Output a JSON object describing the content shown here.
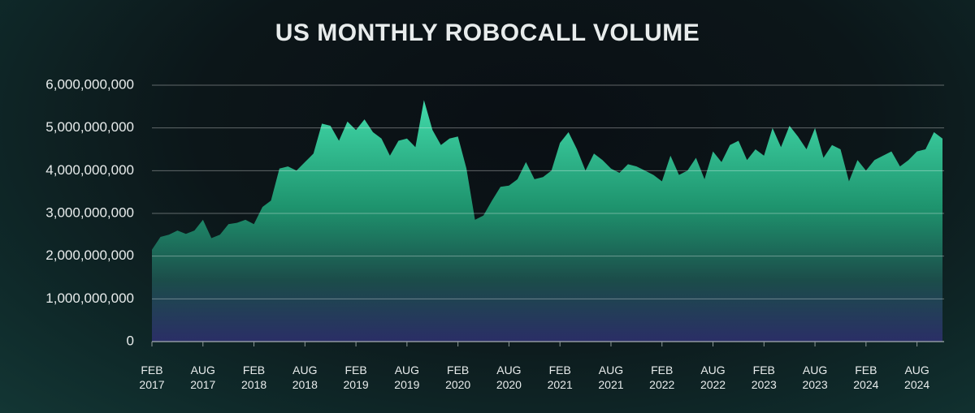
{
  "chart_data": {
    "type": "area",
    "title": "US MONTHLY ROBOCALL VOLUME",
    "categories": [
      "FEB 2017",
      null,
      null,
      null,
      null,
      null,
      "AUG 2017",
      null,
      null,
      null,
      null,
      null,
      "FEB 2018",
      null,
      null,
      null,
      null,
      null,
      "AUG 2018",
      null,
      null,
      null,
      null,
      null,
      "FEB 2019",
      null,
      null,
      null,
      null,
      null,
      "AUG 2019",
      null,
      null,
      null,
      null,
      null,
      "FEB 2020",
      null,
      null,
      null,
      null,
      null,
      "AUG 2020",
      null,
      null,
      null,
      null,
      null,
      "FEB 2021",
      null,
      null,
      null,
      null,
      null,
      "AUG 2021",
      null,
      null,
      null,
      null,
      null,
      "FEB 2022",
      null,
      null,
      null,
      null,
      null,
      "AUG 2022",
      null,
      null,
      null,
      null,
      null,
      "FEB 2023",
      null,
      null,
      null,
      null,
      null,
      "AUG 2023",
      null,
      null,
      null,
      null,
      null,
      "FEB 2024",
      null,
      null,
      null,
      null,
      null,
      "AUG 2024",
      null,
      null,
      null
    ],
    "values": [
      2150000000,
      2450000000,
      2500000000,
      2600000000,
      2520000000,
      2600000000,
      2850000000,
      2420000000,
      2500000000,
      2750000000,
      2780000000,
      2850000000,
      2750000000,
      3150000000,
      3300000000,
      4050000000,
      4100000000,
      4000000000,
      4200000000,
      4400000000,
      5100000000,
      5050000000,
      4700000000,
      5150000000,
      4950000000,
      5200000000,
      4900000000,
      4750000000,
      4350000000,
      4700000000,
      4750000000,
      4550000000,
      5650000000,
      4950000000,
      4600000000,
      4750000000,
      4800000000,
      4050000000,
      2850000000,
      2950000000,
      3300000000,
      3620000000,
      3650000000,
      3800000000,
      4200000000,
      3800000000,
      3850000000,
      4000000000,
      4650000000,
      4900000000,
      4500000000,
      4000000000,
      4400000000,
      4250000000,
      4050000000,
      3950000000,
      4150000000,
      4100000000,
      4000000000,
      3900000000,
      3750000000,
      4350000000,
      3900000000,
      4000000000,
      4300000000,
      3800000000,
      4450000000,
      4200000000,
      4600000000,
      4700000000,
      4250000000,
      4500000000,
      4350000000,
      5000000000,
      4550000000,
      5050000000,
      4800000000,
      4500000000,
      5000000000,
      4300000000,
      4600000000,
      4500000000,
      3750000000,
      4250000000,
      4000000000,
      4250000000,
      4350000000,
      4450000000,
      4100000000,
      4250000000,
      4450000000,
      4500000000,
      4900000000,
      4750000000
    ],
    "color": "#3ddc9c",
    "ylim": [
      0,
      6000000000
    ],
    "yticks": [
      0,
      {
        "value": 1000000000,
        "label": "1,000,000,000"
      },
      {
        "value": 2000000000,
        "label": "2,000,000,000"
      },
      {
        "value": 3000000000,
        "label": "3,000,000,000"
      },
      {
        "value": 4000000000,
        "label": "4,000,000,000"
      },
      {
        "value": 5000000000,
        "label": "5,000,000,000"
      },
      {
        "value": 6000000000,
        "label": "6,000,000,000"
      }
    ],
    "grid": true
  }
}
